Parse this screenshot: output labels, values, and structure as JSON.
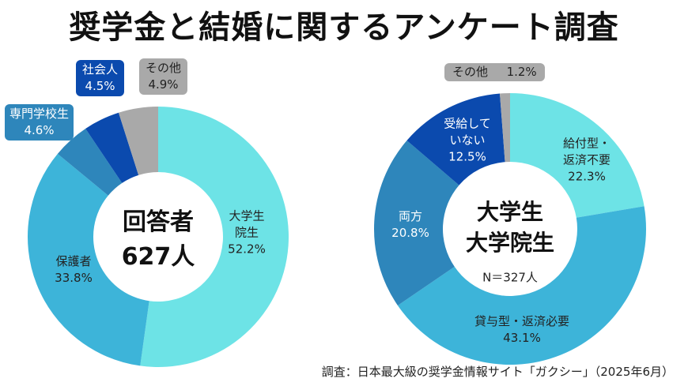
{
  "title": "奨学金と結婚に関するアンケート調査",
  "footer": "調査：日本最大級の奨学金情報サイト「ガクシー」（2025年6月）",
  "chart_data": [
    {
      "type": "pie",
      "donut": true,
      "center_label": [
        "回答者",
        "627人"
      ],
      "slices": [
        {
          "label": "大学生院生",
          "label_lines": [
            "大学生",
            "院生"
          ],
          "value": 52.2,
          "value_text": "52.2%",
          "color": "#6de3e6"
        },
        {
          "label": "保護者",
          "label_lines": [
            "保護者"
          ],
          "value": 33.8,
          "value_text": "33.8%",
          "color": "#3db4d9"
        },
        {
          "label": "専門学校生",
          "label_lines": [
            "専門学校生"
          ],
          "value": 4.6,
          "value_text": "4.6%",
          "color": "#2e86bb"
        },
        {
          "label": "社会人",
          "label_lines": [
            "社会人"
          ],
          "value": 4.5,
          "value_text": "4.5%",
          "color": "#0b4aae"
        },
        {
          "label": "その他",
          "label_lines": [
            "その他"
          ],
          "value": 4.9,
          "value_text": "4.9%",
          "color": "#a9a9a9"
        }
      ]
    },
    {
      "type": "pie",
      "donut": true,
      "center_label": [
        "大学生",
        "大学院生"
      ],
      "n_label": "N＝327人",
      "slices": [
        {
          "label": "給付型・返済不要",
          "label_lines": [
            "給付型・",
            "返済不要"
          ],
          "value": 22.3,
          "value_text": "22.3%",
          "color": "#6de3e6"
        },
        {
          "label": "貸与型・返済必要",
          "label_lines": [
            "貸与型・返済必要"
          ],
          "value": 43.1,
          "value_text": "43.1%",
          "color": "#3db4d9"
        },
        {
          "label": "両方",
          "label_lines": [
            "両方"
          ],
          "value": 20.8,
          "value_text": "20.8%",
          "color": "#2e86bb"
        },
        {
          "label": "受給していない",
          "label_lines": [
            "受給して",
            "いない"
          ],
          "value": 12.5,
          "value_text": "12.5%",
          "color": "#0b4aae"
        },
        {
          "label": "その他",
          "label_lines": [
            "その他"
          ],
          "value": 1.2,
          "value_text": "1.2%",
          "color": "#a9a9a9"
        }
      ]
    }
  ]
}
